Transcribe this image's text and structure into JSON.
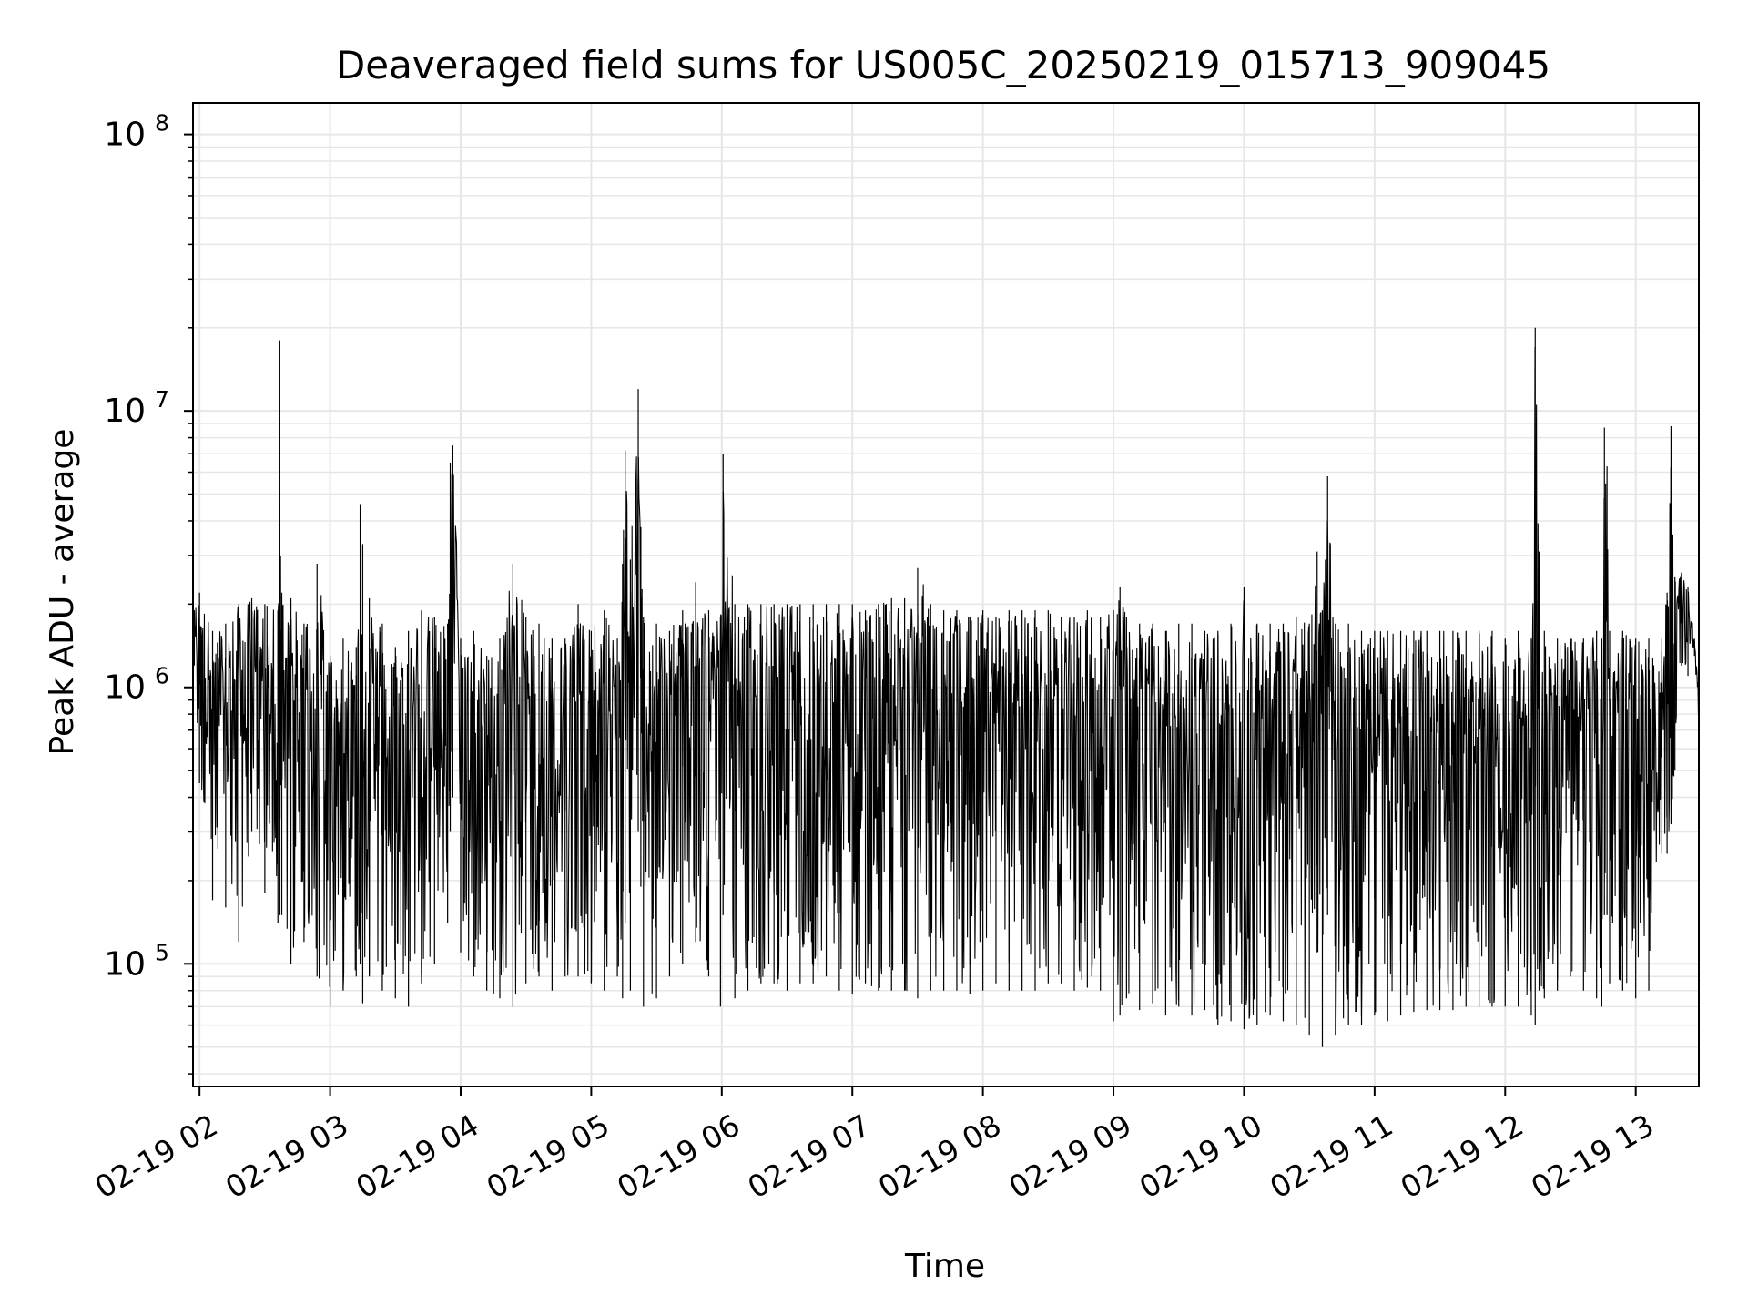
{
  "chart_data": {
    "type": "line",
    "title": "Deaveraged field sums for US005C_20250219_015713_909045",
    "xlabel": "Time",
    "ylabel": "Peak ADU - average",
    "yscale": "log",
    "ylim": [
      36000,
      130000000
    ],
    "xlim": [
      "2025-02-19T01:57",
      "2025-02-19T13:29"
    ],
    "grid": true,
    "x_tick_labels": [
      "02-19 02",
      "02-19 03",
      "02-19 04",
      "02-19 05",
      "02-19 06",
      "02-19 07",
      "02-19 08",
      "02-19 09",
      "02-19 10",
      "02-19 11",
      "02-19 12",
      "02-19 13"
    ],
    "x_tick_hours": [
      2,
      3,
      4,
      5,
      6,
      7,
      8,
      9,
      10,
      11,
      12,
      13
    ],
    "y_ticks": [
      {
        "value": 100000,
        "base": "10",
        "exp": "5"
      },
      {
        "value": 1000000,
        "base": "10",
        "exp": "6"
      },
      {
        "value": 10000000,
        "base": "10",
        "exp": "7"
      },
      {
        "value": 100000000,
        "base": "10",
        "exp": "8"
      }
    ],
    "series": [
      {
        "color": "#000000",
        "x_hours": [
          1.96,
          2.0,
          2.1,
          2.2,
          2.3,
          2.4,
          2.5,
          2.6,
          2.615,
          2.63,
          2.7,
          2.8,
          2.9,
          3.0,
          3.1,
          3.2,
          3.23,
          3.25,
          3.3,
          3.4,
          3.5,
          3.6,
          3.7,
          3.8,
          3.9,
          3.92,
          3.94,
          4.0,
          4.1,
          4.2,
          4.3,
          4.4,
          4.5,
          4.6,
          4.7,
          4.8,
          4.9,
          5.0,
          5.1,
          5.2,
          5.24,
          5.26,
          5.3,
          5.36,
          5.38,
          5.4,
          5.5,
          5.6,
          5.7,
          5.8,
          5.9,
          5.99,
          6.01,
          6.1,
          6.2,
          6.3,
          6.4,
          6.5,
          6.6,
          6.7,
          6.8,
          6.9,
          7.0,
          7.1,
          7.2,
          7.3,
          7.4,
          7.5,
          7.6,
          7.7,
          7.8,
          7.9,
          8.0,
          8.1,
          8.2,
          8.3,
          8.4,
          8.5,
          8.6,
          8.7,
          8.8,
          8.9,
          9.0,
          9.05,
          9.1,
          9.2,
          9.3,
          9.4,
          9.5,
          9.6,
          9.7,
          9.8,
          9.9,
          10.0,
          10.1,
          10.2,
          10.3,
          10.4,
          10.5,
          10.56,
          10.6,
          10.64,
          10.7,
          10.8,
          10.9,
          11.0,
          11.1,
          11.2,
          11.3,
          11.4,
          11.5,
          11.6,
          11.7,
          11.8,
          11.9,
          12.0,
          12.1,
          12.2,
          12.23,
          12.26,
          12.3,
          12.4,
          12.5,
          12.6,
          12.7,
          12.74,
          12.76,
          12.78,
          12.8,
          12.9,
          13.0,
          13.1,
          13.2,
          13.24,
          13.27,
          13.3,
          13.35,
          13.4,
          13.45,
          13.48
        ],
        "y_max": [
          1900000,
          2200000,
          1600000,
          1700000,
          2000000,
          2100000,
          2000000,
          1900000,
          18000000,
          2200000,
          2100000,
          1700000,
          2800000,
          1300000,
          1500000,
          1400000,
          4600000,
          3300000,
          2100000,
          1700000,
          1400000,
          1600000,
          1900000,
          1800000,
          1700000,
          6500000,
          7500000,
          1500000,
          1600000,
          1300000,
          1500000,
          2800000,
          1800000,
          1700000,
          1500000,
          1500000,
          2000000,
          1600000,
          1900000,
          1500000,
          2800000,
          7200000,
          2900000,
          12000000,
          3800000,
          1800000,
          1700000,
          1600000,
          1900000,
          2400000,
          1900000,
          1800000,
          7000000,
          2000000,
          2000000,
          2000000,
          2000000,
          2000000,
          2000000,
          2000000,
          2000000,
          2000000,
          2000000,
          1900000,
          2000000,
          2100000,
          2100000,
          2700000,
          2000000,
          1900000,
          1900000,
          1800000,
          1900000,
          1800000,
          1900000,
          1900000,
          1900000,
          1900000,
          1800000,
          1800000,
          1900000,
          1800000,
          1900000,
          2300000,
          1800000,
          1700000,
          1700000,
          1600000,
          1700000,
          1700000,
          1600000,
          1600000,
          1700000,
          2300000,
          1700000,
          1700000,
          1700000,
          1800000,
          1700000,
          3100000,
          1900000,
          5800000,
          1700000,
          1700000,
          1600000,
          1600000,
          1600000,
          1600000,
          1600000,
          1600000,
          1600000,
          1600000,
          1600000,
          1600000,
          1600000,
          1500000,
          1600000,
          1500000,
          20000000,
          3100000,
          1600000,
          1500000,
          1500000,
          1500000,
          1600000,
          1500000,
          8700000,
          6300000,
          1600000,
          1600000,
          1500000,
          1500000,
          1500000,
          2200000,
          8800000,
          2500000,
          2600000,
          2300000,
          1500000,
          1000000
        ],
        "y_min": [
          1200000,
          450000,
          170000,
          160000,
          120000,
          300000,
          180000,
          140000,
          150000,
          150000,
          100000,
          120000,
          90000,
          70000,
          80000,
          90000,
          100000,
          72000,
          90000,
          80000,
          75000,
          70000,
          85000,
          100000,
          140000,
          300000,
          400000,
          110000,
          90000,
          80000,
          75000,
          70000,
          85000,
          90000,
          80000,
          90000,
          90000,
          85000,
          80000,
          90000,
          75000,
          140000,
          80000,
          300000,
          190000,
          70000,
          75000,
          90000,
          100000,
          120000,
          90000,
          70000,
          150000,
          75000,
          80000,
          85000,
          85000,
          80000,
          85000,
          85000,
          90000,
          80000,
          78000,
          85000,
          80000,
          80000,
          80000,
          75000,
          80000,
          80000,
          80000,
          78000,
          80000,
          85000,
          80000,
          80000,
          80000,
          85000,
          85000,
          80000,
          82000,
          80000,
          62000,
          65000,
          75000,
          68000,
          72000,
          65000,
          70000,
          65000,
          68000,
          60000,
          62000,
          58000,
          60000,
          65000,
          62000,
          60000,
          55000,
          110000,
          50000,
          150000,
          55000,
          60000,
          60000,
          65000,
          62000,
          65000,
          67000,
          68000,
          68000,
          68000,
          70000,
          70000,
          70000,
          70000,
          70000,
          65000,
          60000,
          80000,
          75000,
          80000,
          90000,
          80000,
          75000,
          70000,
          150000,
          150000,
          85000,
          80000,
          75000,
          80000,
          250000,
          250000,
          320000,
          500000,
          1200000,
          1100000,
          1300000,
          800000
        ]
      }
    ]
  }
}
